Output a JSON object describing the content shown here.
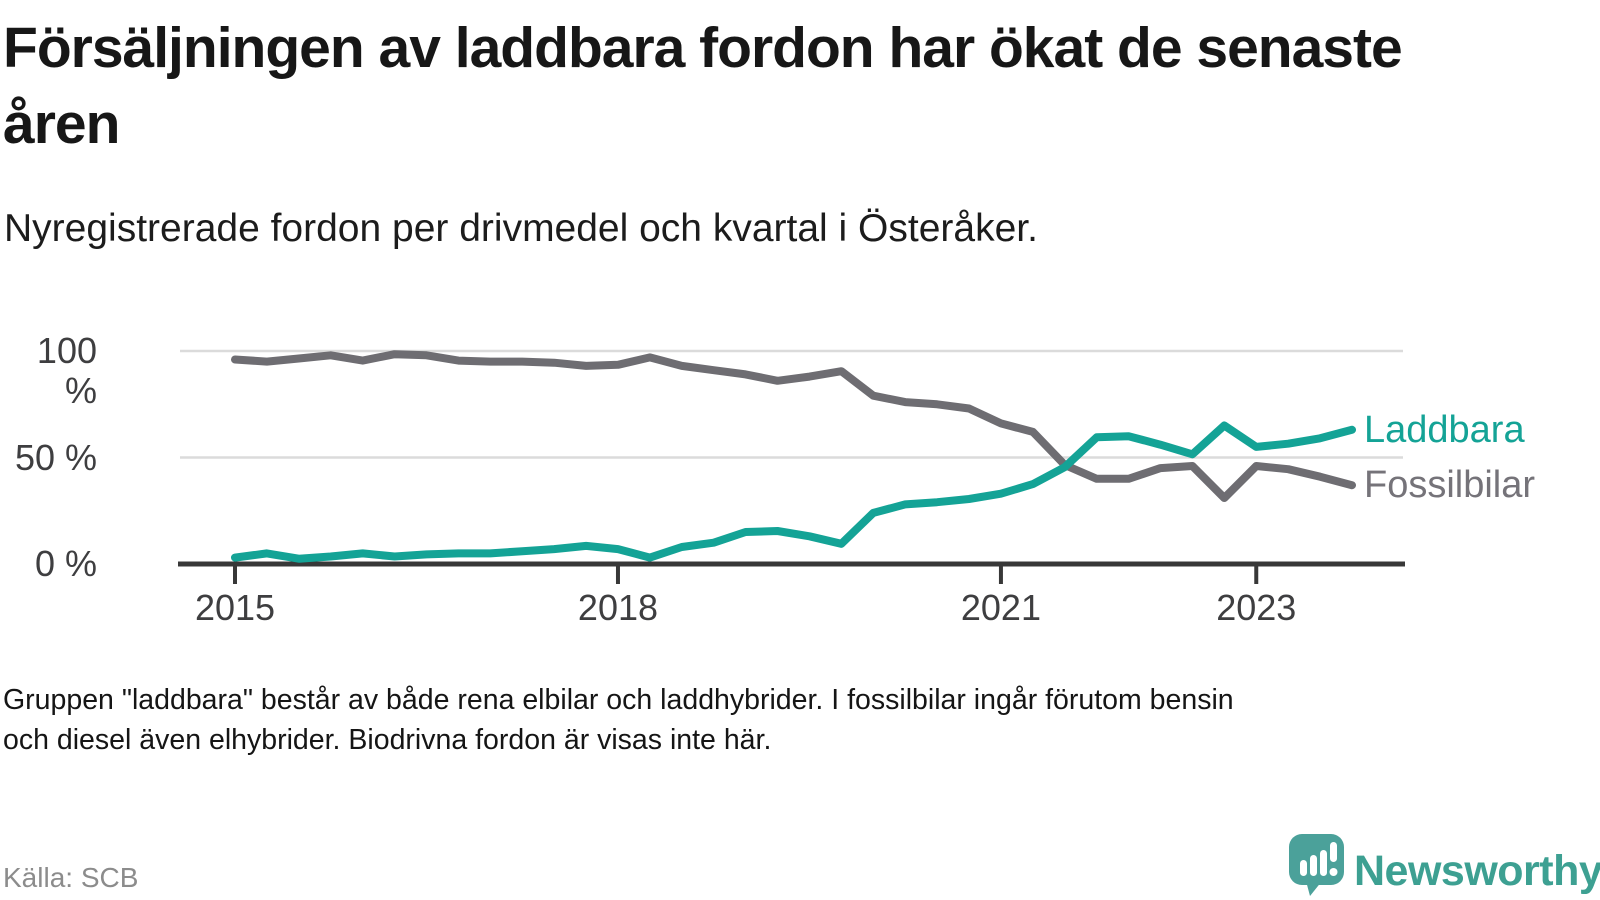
{
  "header": {
    "title": "Försäljningen av laddbara fordon har ökat de senaste åren",
    "subtitle": "Nyregistrerade fordon per drivmedel och kvartal i Österåker."
  },
  "chart_data": {
    "type": "line",
    "title": "Nyregistrerade fordon per drivmedel och kvartal i Österåker",
    "unit": "%",
    "ylim": [
      0,
      100
    ],
    "grid": "horizontal",
    "legend_position": "right-end-of-line",
    "x": [
      "2015K1",
      "2015K2",
      "2015K3",
      "2015K4",
      "2016K1",
      "2016K2",
      "2016K3",
      "2016K4",
      "2017K1",
      "2017K2",
      "2017K3",
      "2017K4",
      "2018K1",
      "2018K2",
      "2018K3",
      "2018K4",
      "2019K1",
      "2019K2",
      "2019K3",
      "2019K4",
      "2020K1",
      "2020K2",
      "2020K3",
      "2020K4",
      "2021K1",
      "2021K2",
      "2021K3",
      "2021K4",
      "2022K1",
      "2022K2",
      "2022K3",
      "2022K4",
      "2023K1",
      "2023K2",
      "2023K3",
      "2023K4"
    ],
    "series": [
      {
        "name": "Fossilbilar",
        "color": "#6e6d72",
        "label_color": "#757379",
        "values": [
          96,
          95,
          96.5,
          98,
          95.5,
          98.5,
          98,
          95.5,
          95,
          95,
          94.5,
          93,
          93.5,
          97,
          93,
          91,
          89,
          86,
          88,
          90.5,
          79,
          76,
          75,
          73,
          66,
          62,
          46.5,
          40,
          40,
          45,
          46,
          31,
          46,
          44.5,
          41,
          37
        ]
      },
      {
        "name": "Laddbara",
        "color": "#14a396",
        "label_color": "#14a396",
        "values": [
          3,
          5,
          2.5,
          3.5,
          5,
          3.5,
          4.5,
          5,
          5,
          6,
          7,
          8.5,
          7,
          3,
          8,
          10,
          15,
          15.5,
          13,
          9.5,
          24,
          28,
          29,
          30.5,
          33,
          37.5,
          45.5,
          59.5,
          60,
          56,
          51.5,
          65,
          55,
          56.5,
          59,
          63
        ]
      }
    ],
    "yticks": [
      {
        "label": "100 %",
        "value": 100
      },
      {
        "label": "50 %",
        "value": 50
      },
      {
        "label": "0 %",
        "value": 0
      }
    ],
    "xticks": [
      {
        "label": "2015",
        "index": 0
      },
      {
        "label": "2018",
        "index": 12
      },
      {
        "label": "2021",
        "index": 24
      },
      {
        "label": "2023",
        "index": 32
      }
    ],
    "colors": {
      "gridline": "#dbdbdb",
      "axis": "#383838",
      "tick_label": "#3e3e40"
    }
  },
  "footer": {
    "note": "Gruppen \"laddbara\" består av både rena elbilar och laddhybrider. I fossilbilar ingår förutom bensin\noch diesel även elhybrider. Biodrivna fordon är visas inte här.",
    "source": "Källa: SCB"
  },
  "logo": {
    "wordmark": "Newsworthy",
    "icon": "newsworthy-speech-bubble-chart-icon",
    "color": "#3da092",
    "icon_color": "#4ba19a"
  }
}
